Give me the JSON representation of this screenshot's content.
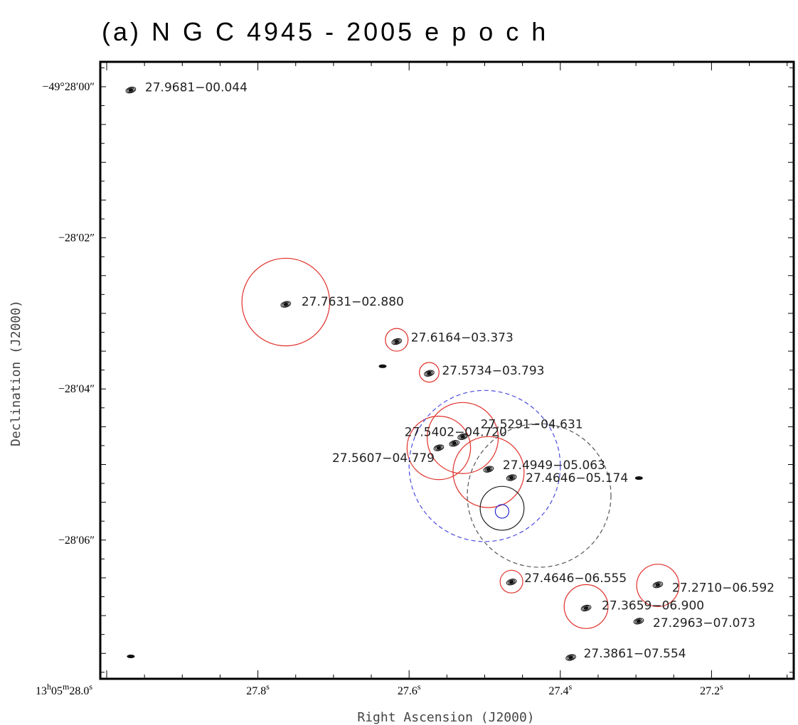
{
  "title": "(a) N G C 4945 - 2005 e p o c h",
  "chart_data": {
    "type": "scatter",
    "title": "(a) N G C 4945 - 2005 e p o c h",
    "xlabel": "Right Ascension (J2000)",
    "ylabel": "Declination (J2000)",
    "xlim": [
      28.01,
      27.06
    ],
    "ylim": [
      7.8,
      -0.2
    ],
    "x_unit": "seconds of RA offset within 13h05m",
    "y_unit": "arcsec of Dec offset below -49°28'00\"",
    "x_ticks": [
      {
        "value": 28.0,
        "h": "13",
        "m": "05",
        "s": "28.0"
      },
      {
        "value": 27.8,
        "s": "27.8"
      },
      {
        "value": 27.6,
        "s": "27.6"
      },
      {
        "value": 27.4,
        "s": "27.4"
      },
      {
        "value": 27.2,
        "s": "27.2"
      }
    ],
    "y_ticks": [
      {
        "value": 0,
        "label": "−49°28′00″"
      },
      {
        "value": 2,
        "label": "−28′02″"
      },
      {
        "value": 4,
        "label": "−28′04″"
      },
      {
        "value": 6,
        "label": "−28′06″"
      }
    ],
    "sources": [
      {
        "label": "27.9681−00.044",
        "ra": 27.9681,
        "dec": 0.044
      },
      {
        "label": "27.7631−02.880",
        "ra": 27.7631,
        "dec": 2.88
      },
      {
        "label": "27.6164−03.373",
        "ra": 27.6164,
        "dec": 3.373
      },
      {
        "label": "27.5734−03.793",
        "ra": 27.5734,
        "dec": 3.793
      },
      {
        "label": "27.5402−04.720",
        "ra": 27.5402,
        "dec": 4.72
      },
      {
        "label": "27.5607−04.779",
        "ra": 27.5607,
        "dec": 4.779
      },
      {
        "label": "27.5291−04.631",
        "ra": 27.5291,
        "dec": 4.631
      },
      {
        "label": "27.4949−05.063",
        "ra": 27.4949,
        "dec": 5.063
      },
      {
        "label": "27.4646−05.174",
        "ra": 27.4646,
        "dec": 5.174
      },
      {
        "label": "27.4646−06.555",
        "ra": 27.4646,
        "dec": 6.555
      },
      {
        "label": "27.2710−06.592",
        "ra": 27.271,
        "dec": 6.592
      },
      {
        "label": "27.3659−06.900",
        "ra": 27.3659,
        "dec": 6.9
      },
      {
        "label": "27.2963−07.073",
        "ra": 27.2963,
        "dec": 7.073
      },
      {
        "label": "27.3861−07.554",
        "ra": 27.3861,
        "dec": 7.554
      }
    ],
    "error_circles": [
      {
        "ra": 27.7631,
        "dec": 2.85,
        "r_arcsec": 0.58,
        "color": "#e0302a",
        "dashed": false
      },
      {
        "ra": 27.6164,
        "dec": 3.35,
        "r_arcsec": 0.15,
        "color": "#e0302a",
        "dashed": false
      },
      {
        "ra": 27.5734,
        "dec": 3.78,
        "r_arcsec": 0.13,
        "color": "#e0302a",
        "dashed": false
      },
      {
        "ra": 27.5607,
        "dec": 4.78,
        "r_arcsec": 0.42,
        "color": "#e0302a",
        "dashed": false
      },
      {
        "ra": 27.5291,
        "dec": 4.65,
        "r_arcsec": 0.47,
        "color": "#e0302a",
        "dashed": false
      },
      {
        "ra": 27.4949,
        "dec": 5.1,
        "r_arcsec": 0.47,
        "color": "#e0302a",
        "dashed": false
      },
      {
        "ra": 27.4646,
        "dec": 6.55,
        "r_arcsec": 0.15,
        "color": "#e0302a",
        "dashed": false
      },
      {
        "ra": 27.271,
        "dec": 6.6,
        "r_arcsec": 0.28,
        "color": "#e0302a",
        "dashed": false
      },
      {
        "ra": 27.3659,
        "dec": 6.88,
        "r_arcsec": 0.29,
        "color": "#e0302a",
        "dashed": false
      },
      {
        "ra": 27.5,
        "dec": 5.02,
        "r_arcsec": 1.0,
        "color": "#4a4ae0",
        "dashed": true
      },
      {
        "ra": 27.428,
        "dec": 5.41,
        "r_arcsec": 0.95,
        "color": "#555555",
        "dashed": true
      },
      {
        "ra": 27.477,
        "dec": 5.58,
        "r_arcsec": 0.29,
        "color": "#222222",
        "dashed": false
      },
      {
        "ra": 27.477,
        "dec": 5.62,
        "r_arcsec": 0.09,
        "color": "#2b2bd6",
        "dashed": false
      }
    ],
    "extra_features": [
      {
        "ra": 27.9681,
        "dec": 7.54
      },
      {
        "ra": 27.635,
        "dec": 3.7
      },
      {
        "ra": 27.296,
        "dec": 5.18
      }
    ],
    "grid": false
  }
}
